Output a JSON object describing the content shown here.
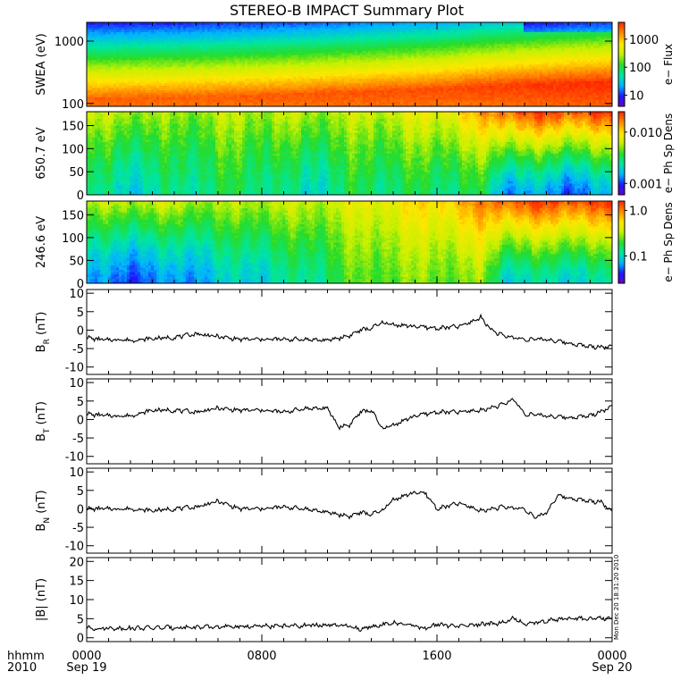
{
  "title": "STEREO-B IMPACT Summary Plot",
  "footer": {
    "left_top": "hhmm",
    "left_bottom": "2010",
    "time_ticks": [
      {
        "top": "0000",
        "bottom": "Sep 19",
        "hour": 0
      },
      {
        "top": "0800",
        "bottom": "",
        "hour": 8
      },
      {
        "top": "1600",
        "bottom": "",
        "hour": 16
      },
      {
        "top": "0000",
        "bottom": "Sep 20",
        "hour": 24
      }
    ],
    "stamp": "Mon Dec 20 18:31:20 2010"
  },
  "colors": {
    "spectral": [
      "#6a00c8",
      "#1a1aff",
      "#00b4ff",
      "#00e6a0",
      "#28dc28",
      "#c8f000",
      "#ffe600",
      "#ff8c00",
      "#ff2800"
    ],
    "line": "#000000",
    "frame": "#000000"
  },
  "chart_data": [
    {
      "type": "heatmap",
      "panel": "swea",
      "ylabel": "SWEA (eV)",
      "y_scale": "log",
      "ylim": [
        90,
        2000
      ],
      "ytick_labels": [
        "1000",
        "100"
      ],
      "ytick_values": [
        1000,
        100
      ],
      "colorbar_label": "e− Flux",
      "colorbar_scale": "log",
      "colorbar_range": [
        4,
        4000
      ],
      "colorbar_ticks": [
        "1000",
        "100",
        "10"
      ],
      "colorbar_tick_values": [
        1000,
        100,
        10
      ],
      "x_hours": [
        0,
        4,
        8,
        12,
        16,
        18,
        20,
        22,
        24
      ],
      "peak_energy_eV": [
        120,
        125,
        135,
        150,
        170,
        190,
        200,
        210,
        220
      ],
      "peak_flux": [
        2500,
        2500,
        2600,
        2800,
        3000,
        3200,
        3500,
        3800,
        4000
      ],
      "high_energy_dropout_hours": [
        20,
        24
      ]
    },
    {
      "type": "heatmap",
      "panel": "pad_650",
      "ylabel": "650.7 eV",
      "ylim": [
        0,
        180
      ],
      "ytick_labels": [
        "150",
        "100",
        "50",
        "0"
      ],
      "ytick_values": [
        150,
        100,
        50,
        0
      ],
      "colorbar_label": "e− Ph Sp Dens",
      "colorbar_scale": "log",
      "colorbar_range": [
        0.0006,
        0.025
      ],
      "colorbar_ticks": [
        "0.010",
        "0.001"
      ],
      "colorbar_tick_values": [
        0.01,
        0.001
      ],
      "x_hours": [
        0,
        2,
        4,
        6,
        8,
        10,
        12,
        14,
        16,
        18,
        19,
        20,
        22,
        24
      ],
      "field_aligned_density": [
        0.006,
        0.006,
        0.005,
        0.006,
        0.006,
        0.006,
        0.006,
        0.007,
        0.008,
        0.012,
        0.02,
        0.022,
        0.022,
        0.022
      ],
      "anti_field_aligned_density": [
        0.0025,
        0.002,
        0.0025,
        0.003,
        0.003,
        0.002,
        0.003,
        0.003,
        0.003,
        0.003,
        0.0015,
        0.0015,
        0.0012,
        0.0015
      ]
    },
    {
      "type": "heatmap",
      "panel": "pad_246",
      "ylabel": "246.6 eV",
      "ylim": [
        0,
        180
      ],
      "ytick_labels": [
        "150",
        "100",
        "50",
        "0"
      ],
      "ytick_values": [
        150,
        100,
        50,
        0
      ],
      "colorbar_label": "e− Ph Sp Dens",
      "colorbar_scale": "log",
      "colorbar_range": [
        0.025,
        1.6
      ],
      "colorbar_ticks": [
        "1.0",
        "0.1"
      ],
      "colorbar_tick_values": [
        1.0,
        0.1
      ],
      "x_hours": [
        0,
        2,
        4,
        6,
        8,
        10,
        12,
        14,
        16,
        18,
        19,
        20,
        22,
        24
      ],
      "field_aligned_density": [
        0.3,
        0.35,
        0.35,
        0.3,
        0.35,
        0.35,
        0.4,
        0.5,
        0.6,
        0.9,
        1.3,
        1.4,
        1.4,
        1.4
      ],
      "anti_field_aligned_density": [
        0.06,
        0.05,
        0.06,
        0.08,
        0.1,
        0.12,
        0.2,
        0.25,
        0.25,
        0.25,
        0.1,
        0.1,
        0.1,
        0.1
      ]
    },
    {
      "type": "line",
      "panel": "br",
      "ylabel": "B_R (nT)",
      "ylim": [
        -12,
        11
      ],
      "ytick_labels": [
        "10",
        "5",
        "0",
        "-5",
        "-10"
      ],
      "ytick_values": [
        10,
        5,
        0,
        -5,
        -10
      ],
      "x": [
        0,
        0.5,
        1,
        1.5,
        2,
        3,
        4,
        5,
        6,
        7,
        8,
        9,
        10,
        11,
        12,
        12.5,
        13,
        13.5,
        14,
        15,
        16,
        17,
        17.5,
        18,
        18.5,
        19,
        20,
        21,
        22,
        23,
        24
      ],
      "y": [
        -2,
        -2.5,
        -2.7,
        -2.5,
        -2.8,
        -2.3,
        -2,
        -1,
        -1.8,
        -2.5,
        -2.5,
        -2.5,
        -2.5,
        -2.8,
        -1.5,
        0,
        0.5,
        2,
        1.5,
        1,
        0.5,
        1,
        2,
        3.5,
        0,
        -1.5,
        -2.5,
        -2.5,
        -3.5,
        -4.5,
        -4.5
      ]
    },
    {
      "type": "line",
      "panel": "bt",
      "ylabel": "B_T (nT)",
      "ylim": [
        -12,
        11
      ],
      "ytick_labels": [
        "10",
        "5",
        "0",
        "-5",
        "-10"
      ],
      "ytick_values": [
        10,
        5,
        0,
        -5,
        -10
      ],
      "x": [
        0,
        0.5,
        1,
        2,
        3,
        4,
        5,
        6,
        7,
        8,
        9,
        10,
        11,
        11.5,
        12,
        12.5,
        13,
        13.5,
        14,
        15,
        16,
        17,
        18,
        19,
        19.5,
        20,
        21,
        22,
        23,
        24
      ],
      "y": [
        1.5,
        1.2,
        1,
        1,
        2.5,
        2.5,
        2,
        3,
        2.5,
        2.5,
        2,
        3,
        3,
        -2,
        -1.5,
        2,
        2.5,
        -2.5,
        -1.5,
        1,
        2,
        2,
        2.5,
        4,
        5.5,
        1.5,
        1,
        0.5,
        1,
        3.5
      ]
    },
    {
      "type": "line",
      "panel": "bn",
      "ylabel": "B_N (nT)",
      "ylim": [
        -12,
        11
      ],
      "ytick_labels": [
        "10",
        "5",
        "0",
        "-5",
        "-10"
      ],
      "ytick_values": [
        10,
        5,
        0,
        -5,
        -10
      ],
      "x": [
        0,
        1,
        2,
        3,
        4,
        5,
        6,
        7,
        8,
        9,
        10,
        11,
        12,
        12.5,
        13,
        13.5,
        14,
        15,
        15.5,
        16,
        17,
        18,
        19,
        20,
        20.5,
        21,
        21.5,
        22,
        23,
        23.5,
        24
      ],
      "y": [
        0,
        0,
        0,
        -0.5,
        0,
        0.5,
        2,
        0,
        0,
        0.5,
        0,
        -1,
        -2,
        -1,
        -1.5,
        -0.5,
        2.5,
        4.5,
        4,
        0,
        1.5,
        -0.5,
        0.5,
        0,
        -2.5,
        -1,
        3.5,
        3,
        2,
        2,
        -1
      ]
    },
    {
      "type": "line",
      "panel": "bmag",
      "ylabel": "|B| (nT)",
      "ylim": [
        -1,
        21
      ],
      "ytick_labels": [
        "20",
        "15",
        "10",
        "5",
        "0"
      ],
      "ytick_values": [
        20,
        15,
        10,
        5,
        0
      ],
      "x": [
        0,
        2,
        4,
        6,
        8,
        10,
        11,
        12,
        12.5,
        13,
        13.5,
        14,
        15,
        15.5,
        16,
        17,
        18,
        19,
        19.5,
        20,
        21,
        22,
        23,
        24
      ],
      "y": [
        2.5,
        2.5,
        2.7,
        2.8,
        3,
        3.2,
        3.3,
        3,
        2.2,
        3,
        3.5,
        3.8,
        3.2,
        2.2,
        3.5,
        3,
        3.5,
        4,
        5.2,
        3.5,
        4.5,
        5,
        5,
        5
      ]
    }
  ]
}
